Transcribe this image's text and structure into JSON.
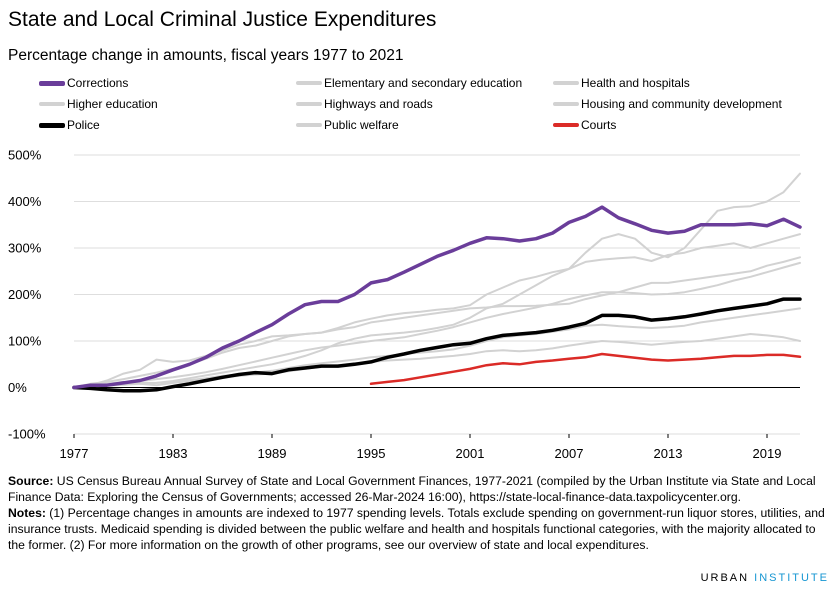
{
  "title": "State and Local Criminal Justice Expenditures",
  "subtitle": "Percentage change in amounts, fiscal years 1977 to 2021",
  "chart_data": {
    "type": "line",
    "title": "State and Local Criminal Justice Expenditures",
    "subtitle": "Percentage change in amounts, fiscal years 1977 to 2021",
    "xlabel": "",
    "ylabel": "",
    "xlim": [
      1977,
      2021
    ],
    "ylim": [
      -100,
      500
    ],
    "x_ticks": [
      1977,
      1983,
      1989,
      1995,
      2001,
      2007,
      2013,
      2019
    ],
    "y_ticks": [
      -100,
      0,
      100,
      200,
      300,
      400,
      500
    ],
    "y_tick_labels": [
      "-100%",
      "0%",
      "100%",
      "200%",
      "300%",
      "400%",
      "500%"
    ],
    "x_tick_labels": [
      "1977",
      "1983",
      "1989",
      "1995",
      "2001",
      "2007",
      "2013",
      "2019"
    ],
    "grid": "horizontal",
    "legend_position": "top",
    "series": [
      {
        "name": "Corrections",
        "color": "#6a3d9a",
        "emphasis": true,
        "x": [
          1977,
          1978,
          1979,
          1980,
          1981,
          1982,
          1983,
          1984,
          1985,
          1986,
          1987,
          1988,
          1989,
          1990,
          1991,
          1992,
          1993,
          1994,
          1995,
          1996,
          1997,
          1998,
          1999,
          2000,
          2001,
          2002,
          2003,
          2004,
          2005,
          2006,
          2007,
          2008,
          2009,
          2010,
          2011,
          2012,
          2013,
          2014,
          2015,
          2016,
          2017,
          2018,
          2019,
          2020,
          2021
        ],
        "values": [
          0,
          5,
          5,
          10,
          15,
          25,
          38,
          50,
          65,
          85,
          100,
          118,
          135,
          158,
          178,
          185,
          185,
          200,
          225,
          232,
          248,
          265,
          282,
          295,
          310,
          322,
          320,
          315,
          320,
          332,
          355,
          368,
          388,
          365,
          352,
          338,
          332,
          336,
          350,
          350,
          350,
          352,
          348,
          362,
          345
        ]
      },
      {
        "name": "Elementary and secondary education",
        "color": "#d2d2d2",
        "emphasis": false,
        "x": [
          1977,
          1978,
          1979,
          1980,
          1981,
          1982,
          1983,
          1984,
          1985,
          1986,
          1987,
          1988,
          1989,
          1990,
          1991,
          1992,
          1993,
          1994,
          1995,
          1996,
          1997,
          1998,
          1999,
          2000,
          2001,
          2002,
          2003,
          2004,
          2005,
          2006,
          2007,
          2008,
          2009,
          2010,
          2011,
          2012,
          2013,
          2014,
          2015,
          2016,
          2017,
          2018,
          2019,
          2020,
          2021
        ],
        "values": [
          0,
          3,
          6,
          10,
          14,
          18,
          22,
          27,
          33,
          40,
          48,
          56,
          64,
          72,
          80,
          86,
          90,
          95,
          100,
          104,
          108,
          115,
          122,
          130,
          140,
          150,
          158,
          165,
          172,
          180,
          190,
          198,
          205,
          205,
          203,
          200,
          201,
          205,
          212,
          220,
          230,
          238,
          248,
          258,
          268
        ]
      },
      {
        "name": "Health and hospitals",
        "color": "#d2d2d2",
        "emphasis": false,
        "x": [
          1977,
          1978,
          1979,
          1980,
          1981,
          1982,
          1983,
          1984,
          1985,
          1986,
          1987,
          1988,
          1989,
          1990,
          1991,
          1992,
          1993,
          1994,
          1995,
          1996,
          1997,
          1998,
          1999,
          2000,
          2001,
          2002,
          2003,
          2004,
          2005,
          2006,
          2007,
          2008,
          2009,
          2010,
          2011,
          2012,
          2013,
          2014,
          2015,
          2016,
          2017,
          2018,
          2019,
          2020,
          2021
        ],
        "values": [
          0,
          5,
          15,
          30,
          38,
          60,
          55,
          58,
          68,
          80,
          92,
          100,
          110,
          112,
          115,
          118,
          128,
          140,
          148,
          155,
          160,
          163,
          167,
          170,
          177,
          200,
          215,
          230,
          238,
          248,
          255,
          270,
          275,
          278,
          280,
          272,
          285,
          290,
          300,
          305,
          310,
          300,
          310,
          320,
          330
        ]
      },
      {
        "name": "Higher education",
        "color": "#d2d2d2",
        "emphasis": false,
        "x": [
          1977,
          1978,
          1979,
          1980,
          1981,
          1982,
          1983,
          1984,
          1985,
          1986,
          1987,
          1988,
          1989,
          1990,
          1991,
          1992,
          1993,
          1994,
          1995,
          1996,
          1997,
          1998,
          1999,
          2000,
          2001,
          2002,
          2003,
          2004,
          2005,
          2006,
          2007,
          2008,
          2009,
          2010,
          2011,
          2012,
          2013,
          2014,
          2015,
          2016,
          2017,
          2018,
          2019,
          2020,
          2021
        ],
        "values": [
          0,
          8,
          12,
          18,
          25,
          32,
          40,
          50,
          62,
          75,
          85,
          90,
          100,
          110,
          115,
          118,
          125,
          130,
          140,
          145,
          150,
          155,
          160,
          165,
          170,
          172,
          175,
          175,
          176,
          178,
          180,
          190,
          198,
          205,
          215,
          225,
          225,
          230,
          235,
          240,
          245,
          250,
          262,
          270,
          280
        ]
      },
      {
        "name": "Highways and roads",
        "color": "#d2d2d2",
        "emphasis": false,
        "x": [
          1977,
          1978,
          1979,
          1980,
          1981,
          1982,
          1983,
          1984,
          1985,
          1986,
          1987,
          1988,
          1989,
          1990,
          1991,
          1992,
          1993,
          1994,
          1995,
          1996,
          1997,
          1998,
          1999,
          2000,
          2001,
          2002,
          2003,
          2004,
          2005,
          2006,
          2007,
          2008,
          2009,
          2010,
          2011,
          2012,
          2013,
          2014,
          2015,
          2016,
          2017,
          2018,
          2019,
          2020,
          2021
        ],
        "values": [
          0,
          2,
          5,
          8,
          10,
          10,
          12,
          16,
          20,
          25,
          28,
          32,
          36,
          42,
          48,
          52,
          56,
          60,
          65,
          68,
          72,
          75,
          78,
          82,
          90,
          100,
          108,
          112,
          115,
          120,
          125,
          133,
          135,
          132,
          130,
          128,
          130,
          133,
          140,
          145,
          150,
          155,
          160,
          165,
          170
        ]
      },
      {
        "name": "Housing and community development",
        "color": "#d2d2d2",
        "emphasis": false,
        "x": [
          1977,
          1978,
          1979,
          1980,
          1981,
          1982,
          1983,
          1984,
          1985,
          1986,
          1987,
          1988,
          1989,
          1990,
          1991,
          1992,
          1993,
          1994,
          1995,
          1996,
          1997,
          1998,
          1999,
          2000,
          2001,
          2002,
          2003,
          2004,
          2005,
          2006,
          2007,
          2008,
          2009,
          2010,
          2011,
          2012,
          2013,
          2014,
          2015,
          2016,
          2017,
          2018,
          2019,
          2020,
          2021
        ],
        "values": [
          0,
          3,
          8,
          12,
          8,
          5,
          10,
          14,
          18,
          22,
          25,
          28,
          30,
          35,
          40,
          45,
          48,
          52,
          55,
          58,
          60,
          62,
          65,
          68,
          72,
          78,
          80,
          78,
          80,
          84,
          90,
          95,
          100,
          98,
          95,
          92,
          95,
          98,
          100,
          105,
          110,
          115,
          112,
          108,
          100
        ]
      },
      {
        "name": "Police",
        "color": "#000000",
        "emphasis": true,
        "x": [
          1977,
          1978,
          1979,
          1980,
          1981,
          1982,
          1983,
          1984,
          1985,
          1986,
          1987,
          1988,
          1989,
          1990,
          1991,
          1992,
          1993,
          1994,
          1995,
          1996,
          1997,
          1998,
          1999,
          2000,
          2001,
          2002,
          2003,
          2004,
          2005,
          2006,
          2007,
          2008,
          2009,
          2010,
          2011,
          2012,
          2013,
          2014,
          2015,
          2016,
          2017,
          2018,
          2019,
          2020,
          2021
        ],
        "values": [
          0,
          -2,
          -5,
          -7,
          -7,
          -5,
          2,
          8,
          15,
          22,
          28,
          32,
          30,
          38,
          42,
          46,
          46,
          50,
          55,
          65,
          72,
          80,
          86,
          92,
          95,
          105,
          112,
          115,
          118,
          123,
          130,
          138,
          155,
          155,
          152,
          145,
          148,
          152,
          158,
          165,
          170,
          175,
          180,
          190,
          190
        ]
      },
      {
        "name": "Public welfare",
        "color": "#d2d2d2",
        "emphasis": false,
        "x": [
          1977,
          1978,
          1979,
          1980,
          1981,
          1982,
          1983,
          1984,
          1985,
          1986,
          1987,
          1988,
          1989,
          1990,
          1991,
          1992,
          1993,
          1994,
          1995,
          1996,
          1997,
          1998,
          1999,
          2000,
          2001,
          2002,
          2003,
          2004,
          2005,
          2006,
          2007,
          2008,
          2009,
          2010,
          2011,
          2012,
          2013,
          2014,
          2015,
          2016,
          2017,
          2018,
          2019,
          2020,
          2021
        ],
        "values": [
          0,
          2,
          4,
          6,
          8,
          10,
          14,
          20,
          26,
          32,
          38,
          44,
          50,
          58,
          68,
          80,
          95,
          105,
          112,
          115,
          118,
          122,
          128,
          135,
          150,
          170,
          180,
          200,
          220,
          240,
          255,
          290,
          320,
          330,
          320,
          290,
          280,
          300,
          340,
          380,
          388,
          390,
          400,
          420,
          460
        ]
      },
      {
        "name": "Courts",
        "color": "#db2b27",
        "emphasis": true,
        "x": [
          1995,
          1996,
          1997,
          1998,
          1999,
          2000,
          2001,
          2002,
          2003,
          2004,
          2005,
          2006,
          2007,
          2008,
          2009,
          2010,
          2011,
          2012,
          2013,
          2014,
          2015,
          2016,
          2017,
          2018,
          2019,
          2020,
          2021
        ],
        "values": [
          8,
          12,
          16,
          22,
          28,
          34,
          40,
          48,
          52,
          50,
          55,
          58,
          62,
          65,
          72,
          68,
          64,
          60,
          58,
          60,
          62,
          65,
          68,
          68,
          70,
          70,
          66
        ]
      }
    ]
  },
  "legend": {
    "items": [
      {
        "label": "Corrections",
        "color": "#6a3d9a"
      },
      {
        "label": "Elementary and secondary education",
        "color": "#d2d2d2"
      },
      {
        "label": "Health and hospitals",
        "color": "#d2d2d2"
      },
      {
        "label": "Higher education",
        "color": "#d2d2d2"
      },
      {
        "label": "Highways and roads",
        "color": "#d2d2d2"
      },
      {
        "label": "Housing and community development",
        "color": "#d2d2d2"
      },
      {
        "label": "Police",
        "color": "#000000"
      },
      {
        "label": "Public welfare",
        "color": "#d2d2d2"
      },
      {
        "label": "Courts",
        "color": "#db2b27"
      }
    ]
  },
  "footer": {
    "source_label": "Source:",
    "source_text": " US Census Bureau Annual Survey of State and Local Government Finances, 1977-2021 (compiled by the Urban Institute via State and Local Finance Data: Exploring the Census of Governments; accessed 26-Mar-2024 16:00), https://state-local-finance-data.taxpolicycenter.org.",
    "notes_label": "Notes:",
    "notes_text": " (1) Percentage changes in amounts are indexed to 1977 spending levels. Totals exclude spending on government-run liquor stores, utilities, and insurance trusts. Medicaid spending is divided between the public welfare and health and hospitals functional categories, with the majority allocated to the former. (2) For more information on the growth of other programs, see our overview of state and local expenditures."
  },
  "brand": {
    "part1": "URBAN",
    "part2": "INSTITUTE",
    "accent": "#1696d2"
  }
}
